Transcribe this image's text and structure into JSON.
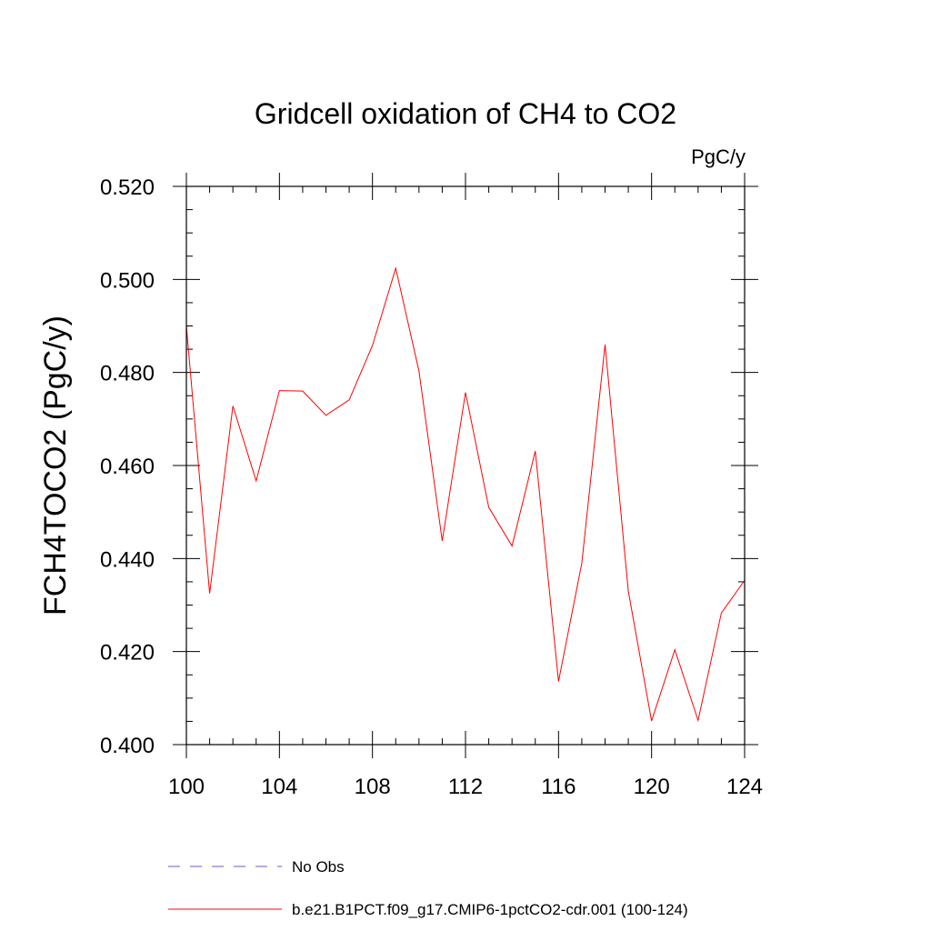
{
  "chart_data": {
    "type": "line",
    "title": "Gridcell oxidation of CH4 to CO2",
    "units": "PgC/y",
    "ylabel": "FCH4TOCO2  (PgC/y)",
    "xlabel": "",
    "xlim": [
      100,
      124
    ],
    "ylim": [
      0.4,
      0.52
    ],
    "x_major_ticks": [
      100,
      104,
      108,
      112,
      116,
      120,
      124
    ],
    "x_tick_labels": [
      "100",
      "104",
      "108",
      "112",
      "116",
      "120",
      "124"
    ],
    "x_minor_step": 1,
    "y_major_ticks": [
      0.4,
      0.42,
      0.44,
      0.46,
      0.48,
      0.5,
      0.52
    ],
    "y_tick_labels": [
      "0.400",
      "0.420",
      "0.440",
      "0.460",
      "0.480",
      "0.500",
      "0.520"
    ],
    "y_minor_step": 0.005,
    "grid": false,
    "legend_position": "bottom",
    "series": [
      {
        "name": "No Obs",
        "color": "#6a5acd",
        "dash": "dashed",
        "x": [],
        "values": []
      },
      {
        "name": "b.e21.B1PCT.f09_g17.CMIP6-1pctCO2-cdr.001 (100-124)",
        "color": "#ff0000",
        "dash": "solid",
        "x": [
          100,
          101,
          102,
          103,
          104,
          105,
          106,
          107,
          108,
          109,
          110,
          111,
          112,
          113,
          114,
          115,
          116,
          117,
          118,
          119,
          120,
          121,
          122,
          123,
          124
        ],
        "values": [
          0.49,
          0.4325,
          0.4728,
          0.4567,
          0.4761,
          0.476,
          0.4708,
          0.4741,
          0.4858,
          0.5024,
          0.4803,
          0.4438,
          0.4757,
          0.451,
          0.4427,
          0.4631,
          0.4136,
          0.439,
          0.486,
          0.433,
          0.4051,
          0.4204,
          0.4052,
          0.4283,
          0.4353
        ]
      }
    ]
  }
}
